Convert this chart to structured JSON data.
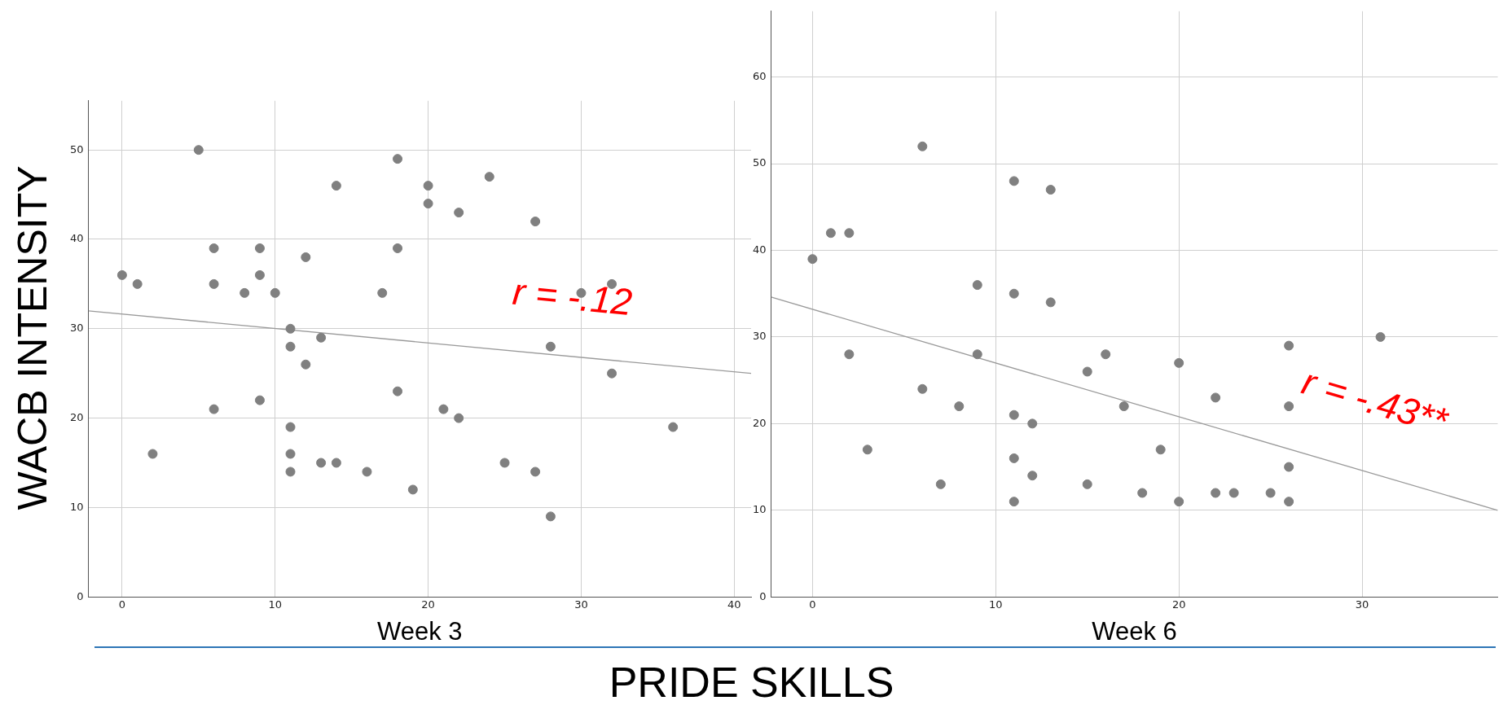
{
  "chart_data": [
    {
      "type": "scatter",
      "xlabel": "Week 3",
      "ylabel": "WACB INTENSITY",
      "xlim": [
        -2.2,
        41.1
      ],
      "ylim": [
        0,
        55.5
      ],
      "xticks": [
        0,
        10,
        20,
        30,
        40
      ],
      "yticks": [
        0,
        10,
        20,
        30,
        40,
        50
      ],
      "grid": true,
      "legend": false,
      "series": [
        {
          "type": "scatter",
          "marker": "circle",
          "color": "#808080",
          "x": [
            0,
            1,
            2,
            5,
            6,
            6,
            6,
            8,
            9,
            9,
            9,
            10,
            11,
            11,
            11,
            11,
            11,
            12,
            12,
            13,
            13,
            14,
            14,
            16,
            17,
            18,
            18,
            18,
            19,
            20,
            20,
            21,
            22,
            22,
            24,
            25,
            27,
            27,
            28,
            28,
            30,
            32,
            32,
            36
          ],
          "values": [
            36,
            35,
            16,
            50,
            39,
            35,
            21,
            34,
            39,
            36,
            22,
            34,
            30,
            28,
            19,
            16,
            14,
            38,
            26,
            29,
            15,
            46,
            15,
            14,
            34,
            49,
            39,
            23,
            12,
            46,
            44,
            21,
            43,
            20,
            47,
            15,
            42,
            14,
            28,
            9,
            34,
            35,
            25,
            19
          ]
        },
        {
          "type": "line",
          "marker": "none",
          "color": "#9a9a9a",
          "x": [
            -2.2,
            41.1
          ],
          "values": [
            32.0,
            25.0
          ]
        }
      ],
      "annotations": [
        "r = -.12"
      ]
    },
    {
      "type": "scatter",
      "xlabel": "Week 6",
      "xlim": [
        -2.26,
        37.4
      ],
      "ylim": [
        0,
        67.6
      ],
      "xticks": [
        0,
        10,
        20,
        30
      ],
      "yticks": [
        0,
        10,
        20,
        30,
        40,
        50,
        60
      ],
      "grid": true,
      "legend": false,
      "series": [
        {
          "type": "scatter",
          "marker": "circle",
          "color": "#808080",
          "x": [
            0,
            1,
            2,
            2,
            3,
            6,
            6,
            7,
            8,
            9,
            9,
            11,
            11,
            11,
            11,
            11,
            12,
            12,
            13,
            13,
            15,
            15,
            16,
            17,
            18,
            19,
            20,
            20,
            22,
            22,
            23,
            25,
            26,
            26,
            26,
            26,
            31
          ],
          "values": [
            39,
            42,
            42,
            28,
            17,
            52,
            24,
            13,
            22,
            36,
            28,
            48,
            35,
            21,
            16,
            11,
            20,
            14,
            47,
            34,
            26,
            13,
            28,
            22,
            12,
            17,
            27,
            11,
            23,
            12,
            12,
            12,
            29,
            22,
            15,
            11,
            30
          ]
        },
        {
          "type": "line",
          "marker": "none",
          "color": "#9a9a9a",
          "x": [
            -2.26,
            37.4
          ],
          "values": [
            34.6,
            10.0
          ]
        }
      ],
      "annotations": [
        "r = -.43**",
        "PRIDE SKILLS"
      ]
    }
  ]
}
